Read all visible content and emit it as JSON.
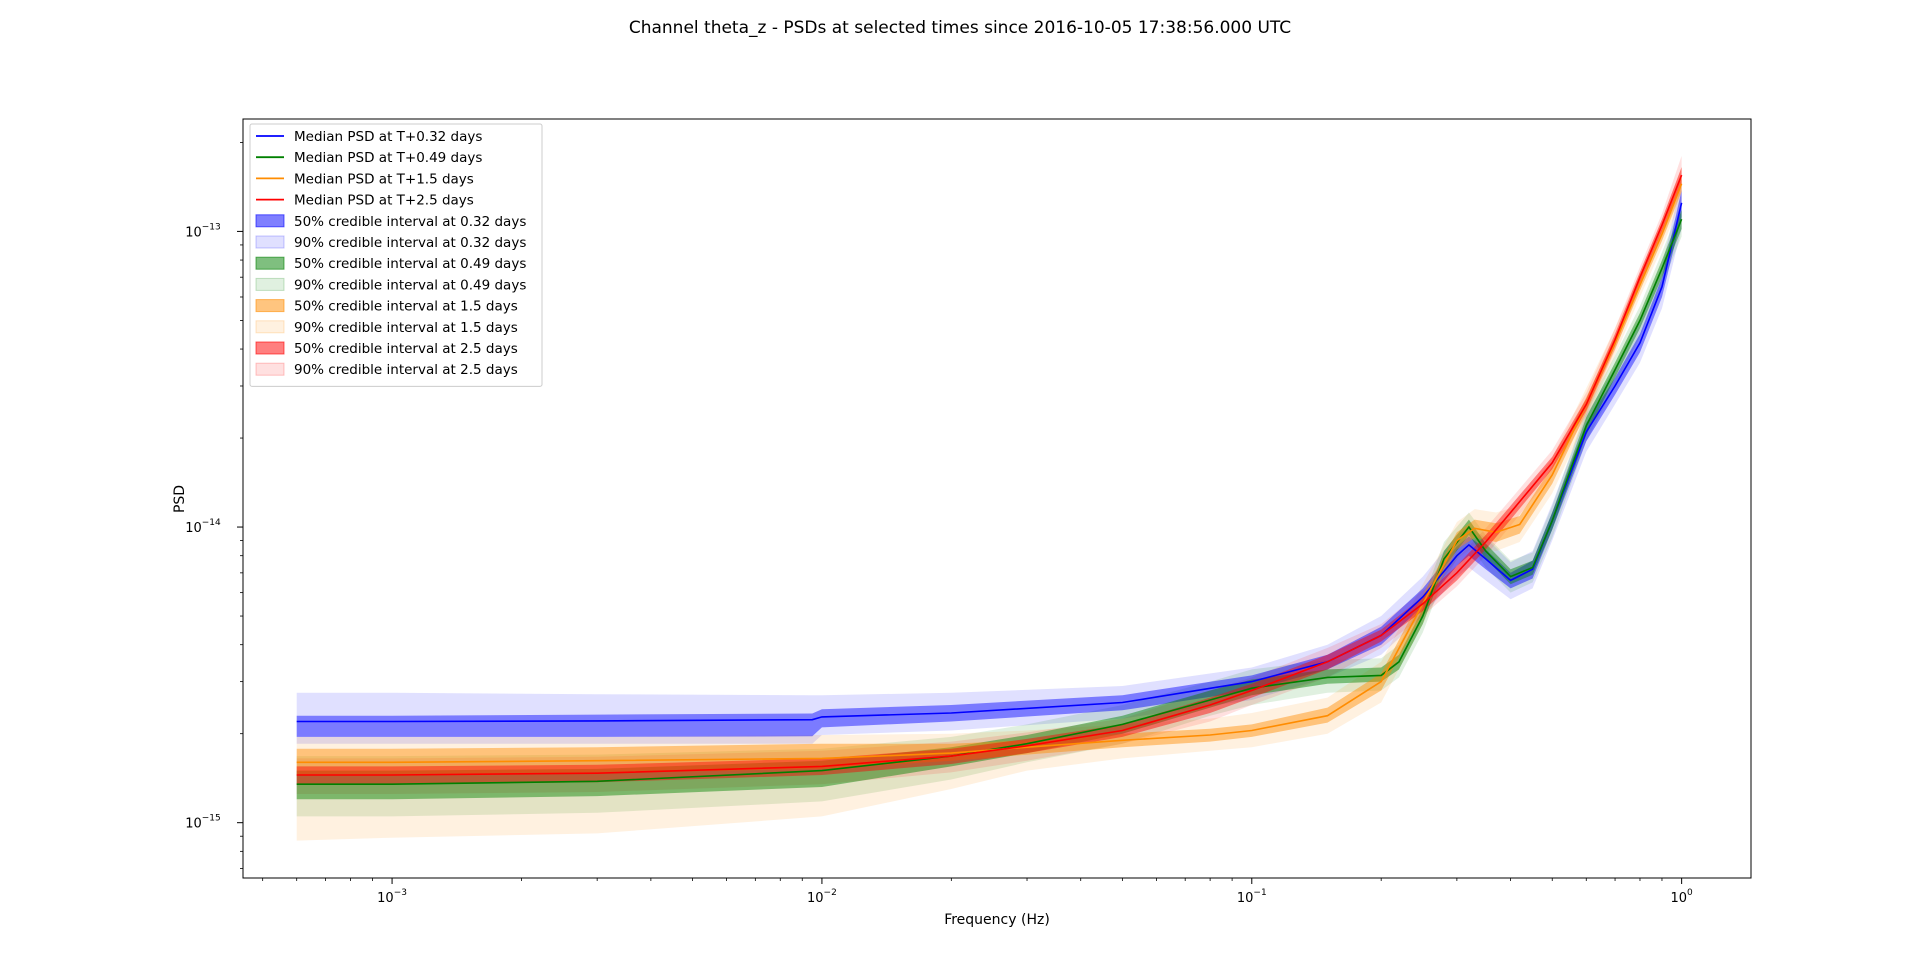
{
  "chart_data": {
    "type": "line",
    "title": "Channel theta_z - PSDs at selected times since 2016-10-05 17:38:56.000 UTC",
    "xlabel": "Frequency (Hz)",
    "ylabel": "PSD",
    "xscale": "log",
    "yscale": "log",
    "xlim": [
      0.00045,
      1.45
    ],
    "ylim": [
      6.5e-16,
      2.4e-13
    ],
    "grid": false,
    "legend_position": "top-left",
    "x_ticks": [
      {
        "value": 0.001,
        "base": "10",
        "exp": "−3"
      },
      {
        "value": 0.01,
        "base": "10",
        "exp": "−2"
      },
      {
        "value": 0.1,
        "base": "10",
        "exp": "−1"
      },
      {
        "value": 1,
        "base": "10",
        "exp": "0"
      }
    ],
    "y_ticks": [
      {
        "value": 1e-15,
        "base": "10",
        "exp": "−15"
      },
      {
        "value": 1e-14,
        "base": "10",
        "exp": "−14"
      },
      {
        "value": 1e-13,
        "base": "10",
        "exp": "−13"
      }
    ],
    "series": [
      {
        "name": "Median PSD at T+0.32 days",
        "color": "#0000ff",
        "band50_label": "50% credible interval at 0.32 days",
        "band90_label": "90% credible interval at 0.32 days",
        "x": [
          0.0006,
          0.001,
          0.003,
          0.0095,
          0.01,
          0.02,
          0.05,
          0.1,
          0.15,
          0.2,
          0.25,
          0.3,
          0.32,
          0.35,
          0.4,
          0.45,
          0.5,
          0.6,
          0.7,
          0.8,
          0.9,
          1.0
        ],
        "median": [
          2.2e-15,
          2.2e-15,
          2.21e-15,
          2.23e-15,
          2.28e-15,
          2.35e-15,
          2.55e-15,
          3e-15,
          3.5e-15,
          4.3e-15,
          5.8e-15,
          8e-15,
          8.7e-15,
          7.8e-15,
          6.6e-15,
          7.2e-15,
          1.05e-14,
          2.1e-14,
          3e-14,
          4.2e-14,
          6.5e-14,
          1.25e-13
        ],
        "lo50": [
          1.95e-15,
          1.95e-15,
          1.95e-15,
          1.96e-15,
          2.1e-15,
          2.2e-15,
          2.4e-15,
          2.8e-15,
          3.3e-15,
          4e-15,
          5.4e-15,
          7.4e-15,
          8e-15,
          7.2e-15,
          6.2e-15,
          6.7e-15,
          9.8e-15,
          1.95e-14,
          2.8e-14,
          3.9e-14,
          6e-14,
          1.12e-13
        ],
        "hi50": [
          2.3e-15,
          2.3e-15,
          2.32e-15,
          2.34e-15,
          2.42e-15,
          2.5e-15,
          2.7e-15,
          3.15e-15,
          3.7e-15,
          4.6e-15,
          6.2e-15,
          8.6e-15,
          9.3e-15,
          8.4e-15,
          7e-15,
          7.7e-15,
          1.12e-14,
          2.25e-14,
          3.2e-14,
          4.5e-14,
          7e-14,
          1.38e-13
        ],
        "lo90": [
          1.85e-15,
          1.85e-15,
          1.85e-15,
          1.85e-15,
          1.98e-15,
          2.05e-15,
          2.25e-15,
          2.6e-15,
          3.1e-15,
          3.7e-15,
          5e-15,
          6.8e-15,
          7.3e-15,
          6.6e-15,
          5.7e-15,
          6.2e-15,
          9e-15,
          1.8e-14,
          2.6e-14,
          3.6e-14,
          5.5e-14,
          1.02e-13
        ],
        "hi90": [
          2.75e-15,
          2.75e-15,
          2.72e-15,
          2.7e-15,
          2.7e-15,
          2.75e-15,
          2.9e-15,
          3.35e-15,
          4e-15,
          5e-15,
          6.8e-15,
          9.4e-15,
          1e-14,
          9.2e-15,
          7.6e-15,
          8.3e-15,
          1.2e-14,
          2.4e-14,
          3.45e-14,
          4.9e-14,
          7.6e-14,
          1.5e-13
        ]
      },
      {
        "name": "Median PSD at T+0.49 days",
        "color": "#008000",
        "band50_label": "50% credible interval at 0.49 days",
        "band90_label": "90% credible interval at 0.49 days",
        "x": [
          0.0006,
          0.001,
          0.003,
          0.01,
          0.02,
          0.03,
          0.05,
          0.08,
          0.1,
          0.15,
          0.2,
          0.22,
          0.25,
          0.28,
          0.32,
          0.35,
          0.4,
          0.45,
          0.5,
          0.6,
          0.7,
          0.8,
          0.9,
          1.0
        ],
        "median": [
          1.35e-15,
          1.35e-15,
          1.38e-15,
          1.5e-15,
          1.68e-15,
          1.85e-15,
          2.15e-15,
          2.6e-15,
          2.85e-15,
          3.1e-15,
          3.15e-15,
          3.5e-15,
          5e-15,
          7.8e-15,
          1e-14,
          8.3e-15,
          6.8e-15,
          7.3e-15,
          1.05e-14,
          2.2e-14,
          3.4e-14,
          5e-14,
          7.5e-14,
          1.1e-13
        ],
        "lo50": [
          1.2e-15,
          1.2e-15,
          1.23e-15,
          1.32e-15,
          1.55e-15,
          1.72e-15,
          2e-15,
          2.45e-15,
          2.7e-15,
          2.95e-15,
          3e-15,
          3.3e-15,
          4.7e-15,
          7.3e-15,
          9.4e-15,
          7.8e-15,
          6.4e-15,
          6.9e-15,
          9.8e-15,
          2.05e-14,
          3.2e-14,
          4.7e-14,
          7e-14,
          1.02e-13
        ],
        "hi50": [
          1.5e-15,
          1.5e-15,
          1.52e-15,
          1.62e-15,
          1.8e-15,
          1.98e-15,
          2.3e-15,
          2.8e-15,
          3.05e-15,
          3.3e-15,
          3.35e-15,
          3.7e-15,
          5.3e-15,
          8.3e-15,
          1.06e-14,
          8.8e-15,
          7.2e-15,
          7.7e-15,
          1.12e-14,
          2.35e-14,
          3.6e-14,
          5.3e-14,
          8e-14,
          1.18e-13
        ],
        "lo90": [
          1.05e-15,
          1.05e-15,
          1.08e-15,
          1.18e-15,
          1.4e-15,
          1.6e-15,
          1.85e-15,
          2.3e-15,
          2.5e-15,
          2.75e-15,
          2.8e-15,
          3.1e-15,
          4.4e-15,
          6.8e-15,
          8.8e-15,
          7.3e-15,
          6e-15,
          6.5e-15,
          9.2e-15,
          1.95e-14,
          3e-14,
          4.4e-14,
          6.6e-14,
          9.6e-14
        ],
        "hi90": [
          1.68e-15,
          1.68e-15,
          1.7e-15,
          1.78e-15,
          1.95e-15,
          2.15e-15,
          2.5e-15,
          3e-15,
          3.3e-15,
          3.55e-15,
          3.6e-15,
          4e-15,
          5.7e-15,
          8.9e-15,
          1.12e-14,
          9.4e-15,
          7.7e-15,
          8.2e-15,
          1.18e-14,
          2.5e-14,
          3.8e-14,
          5.6e-14,
          8.5e-14,
          1.25e-13
        ]
      },
      {
        "name": "Median PSD at T+1.5 days",
        "color": "#ff8c00",
        "band50_label": "50% credible interval at 1.5 days",
        "band90_label": "90% credible interval at 1.5 days",
        "x": [
          0.0006,
          0.001,
          0.003,
          0.01,
          0.02,
          0.03,
          0.05,
          0.08,
          0.1,
          0.15,
          0.2,
          0.25,
          0.3,
          0.33,
          0.37,
          0.42,
          0.5,
          0.6,
          0.7,
          0.8,
          0.9,
          1.0
        ],
        "median": [
          1.6e-15,
          1.6e-15,
          1.62e-15,
          1.65e-15,
          1.72e-15,
          1.8e-15,
          1.9e-15,
          1.98e-15,
          2.05e-15,
          2.3e-15,
          3e-15,
          5.5e-15,
          9e-15,
          9.9e-15,
          9.6e-15,
          1.02e-14,
          1.5e-14,
          2.6e-14,
          4.2e-14,
          6.6e-14,
          9.8e-14,
          1.45e-13
        ],
        "lo50": [
          1.45e-15,
          1.45e-15,
          1.47e-15,
          1.52e-15,
          1.62e-15,
          1.7e-15,
          1.8e-15,
          1.88e-15,
          1.95e-15,
          2.18e-15,
          2.8e-15,
          5.1e-15,
          8.4e-15,
          9.2e-15,
          8.9e-15,
          9.5e-15,
          1.4e-14,
          2.45e-14,
          4e-14,
          6.3e-14,
          9.3e-14,
          1.36e-13
        ],
        "hi50": [
          1.78e-15,
          1.78e-15,
          1.8e-15,
          1.85e-15,
          1.85e-15,
          1.9e-15,
          2e-15,
          2.08e-15,
          2.15e-15,
          2.45e-15,
          3.2e-15,
          5.9e-15,
          9.6e-15,
          1.06e-14,
          1.03e-14,
          1.09e-14,
          1.6e-14,
          2.75e-14,
          4.4e-14,
          6.9e-14,
          1.03e-13,
          1.54e-13
        ],
        "lo90": [
          8.7e-16,
          8.9e-16,
          9.2e-16,
          1.05e-15,
          1.3e-15,
          1.5e-15,
          1.65e-15,
          1.75e-15,
          1.8e-15,
          2e-15,
          2.55e-15,
          4.7e-15,
          7.8e-15,
          8.6e-15,
          8.3e-15,
          8.9e-15,
          1.3e-14,
          2.3e-14,
          3.8e-14,
          6e-14,
          8.8e-14,
          1.28e-13
        ],
        "hi90": [
          1.95e-15,
          1.95e-15,
          1.95e-15,
          1.98e-15,
          2e-15,
          2.05e-15,
          2.15e-15,
          2.25e-15,
          2.35e-15,
          2.65e-15,
          3.5e-15,
          6.4e-15,
          1.04e-14,
          1.15e-14,
          1.12e-14,
          1.18e-14,
          1.72e-14,
          2.95e-14,
          4.7e-14,
          7.3e-14,
          1.1e-13,
          1.65e-13
        ]
      },
      {
        "name": "Median PSD at T+2.5 days",
        "color": "#ff0000",
        "band50_label": "50% credible interval at 2.5 days",
        "band90_label": "90% credible interval at 2.5 days",
        "x": [
          0.0006,
          0.001,
          0.003,
          0.01,
          0.02,
          0.03,
          0.05,
          0.08,
          0.1,
          0.15,
          0.2,
          0.25,
          0.3,
          0.35,
          0.4,
          0.5,
          0.6,
          0.7,
          0.8,
          0.9,
          1.0
        ],
        "median": [
          1.45e-15,
          1.45e-15,
          1.47e-15,
          1.55e-15,
          1.68e-15,
          1.82e-15,
          2.05e-15,
          2.5e-15,
          2.8e-15,
          3.5e-15,
          4.3e-15,
          5.5e-15,
          7e-15,
          8.9e-15,
          1.12e-14,
          1.65e-14,
          2.6e-14,
          4.3e-14,
          7e-14,
          1.05e-13,
          1.55e-13
        ],
        "lo50": [
          1.35e-15,
          1.35e-15,
          1.37e-15,
          1.45e-15,
          1.58e-15,
          1.72e-15,
          1.95e-15,
          2.35e-15,
          2.65e-15,
          3.3e-15,
          4.1e-15,
          5.2e-15,
          6.6e-15,
          8.4e-15,
          1.06e-14,
          1.57e-14,
          2.48e-14,
          4.1e-14,
          6.7e-14,
          1e-13,
          1.45e-13
        ],
        "hi50": [
          1.55e-15,
          1.55e-15,
          1.57e-15,
          1.65e-15,
          1.78e-15,
          1.92e-15,
          2.15e-15,
          2.65e-15,
          2.95e-15,
          3.7e-15,
          4.5e-15,
          5.8e-15,
          7.4e-15,
          9.4e-15,
          1.18e-14,
          1.73e-14,
          2.72e-14,
          4.5e-14,
          7.3e-14,
          1.1e-13,
          1.65e-13
        ],
        "lo90": [
          1.25e-15,
          1.25e-15,
          1.27e-15,
          1.35e-15,
          1.48e-15,
          1.62e-15,
          1.85e-15,
          2.2e-15,
          2.5e-15,
          3.1e-15,
          3.9e-15,
          5e-15,
          6.3e-15,
          8e-15,
          1.01e-14,
          1.5e-14,
          2.38e-14,
          3.95e-14,
          6.5e-14,
          9.6e-14,
          1.38e-13
        ],
        "hi90": [
          1.65e-15,
          1.65e-15,
          1.67e-15,
          1.75e-15,
          1.88e-15,
          2.02e-15,
          2.25e-15,
          2.8e-15,
          3.1e-15,
          3.9e-15,
          4.7e-15,
          6.1e-15,
          7.8e-15,
          9.9e-15,
          1.24e-14,
          1.82e-14,
          2.85e-14,
          4.7e-14,
          7.6e-14,
          1.15e-13,
          1.8e-13
        ]
      }
    ]
  }
}
